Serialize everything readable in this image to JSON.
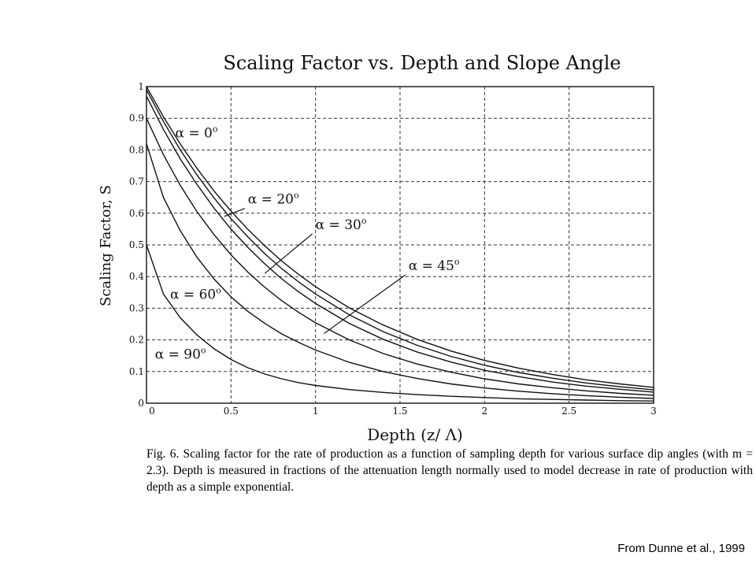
{
  "chart_data": {
    "type": "line",
    "title": "Scaling Factor vs. Depth and Slope Angle",
    "xlabel": "Depth  (z/ Λ)",
    "ylabel": "Scaling Factor, S",
    "xlim": [
      0,
      3
    ],
    "ylim": [
      0,
      1
    ],
    "xticks": [
      0,
      0.5,
      1,
      1.5,
      2,
      2.5,
      3
    ],
    "xtick_labels": [
      "0",
      "0.5",
      "1",
      "1.5",
      "2",
      "2.5",
      "3"
    ],
    "yticks": [
      0,
      0.1,
      0.2,
      0.3,
      0.4,
      0.5,
      0.6,
      0.7,
      0.8,
      0.9,
      1
    ],
    "ytick_labels": [
      "0",
      "0.1",
      "0.2",
      "0.3",
      "0.4",
      "0.5",
      "0.6",
      "0.7",
      "0.8",
      "0.9",
      "1"
    ],
    "grid": true,
    "x": [
      0,
      0.1,
      0.2,
      0.3,
      0.4,
      0.5,
      0.6,
      0.7,
      0.8,
      0.9,
      1.0,
      1.2,
      1.4,
      1.6,
      1.8,
      2.0,
      2.2,
      2.4,
      2.6,
      2.8,
      3.0
    ],
    "series": [
      {
        "name": "α = 0°",
        "values": [
          1.0,
          0.905,
          0.819,
          0.741,
          0.67,
          0.607,
          0.549,
          0.497,
          0.449,
          0.407,
          0.368,
          0.301,
          0.247,
          0.202,
          0.165,
          0.135,
          0.111,
          0.091,
          0.074,
          0.061,
          0.05
        ]
      },
      {
        "name": "α = 20°",
        "values": [
          0.99,
          0.89,
          0.8,
          0.72,
          0.648,
          0.583,
          0.525,
          0.472,
          0.425,
          0.383,
          0.345,
          0.279,
          0.226,
          0.183,
          0.148,
          0.12,
          0.097,
          0.079,
          0.064,
          0.052,
          0.042
        ]
      },
      {
        "name": "α = 30°",
        "values": [
          0.97,
          0.865,
          0.772,
          0.69,
          0.616,
          0.55,
          0.492,
          0.44,
          0.393,
          0.352,
          0.315,
          0.252,
          0.202,
          0.162,
          0.13,
          0.104,
          0.084,
          0.067,
          0.054,
          0.044,
          0.035
        ]
      },
      {
        "name": "α = 45°",
        "values": [
          0.9,
          0.785,
          0.688,
          0.604,
          0.532,
          0.469,
          0.414,
          0.366,
          0.324,
          0.287,
          0.254,
          0.2,
          0.157,
          0.124,
          0.098,
          0.077,
          0.061,
          0.049,
          0.039,
          0.031,
          0.025
        ]
      },
      {
        "name": "α = 60°",
        "values": [
          0.82,
          0.65,
          0.545,
          0.46,
          0.392,
          0.336,
          0.29,
          0.252,
          0.219,
          0.192,
          0.168,
          0.129,
          0.1,
          0.078,
          0.061,
          0.048,
          0.038,
          0.03,
          0.024,
          0.019,
          0.015
        ]
      },
      {
        "name": "α = 90°",
        "values": [
          0.5,
          0.345,
          0.27,
          0.215,
          0.172,
          0.138,
          0.112,
          0.092,
          0.077,
          0.065,
          0.056,
          0.043,
          0.034,
          0.027,
          0.022,
          0.018,
          0.014,
          0.012,
          0.01,
          0.008,
          0.007
        ]
      }
    ],
    "annotations": [
      {
        "series": 0,
        "label": "α = 0",
        "sup": "o",
        "tx": 0.17,
        "ty": 0.84,
        "ax": 0.17,
        "ay": 0.84
      },
      {
        "series": 1,
        "label": "α = 20",
        "sup": "o",
        "tx": 0.6,
        "ty": 0.63,
        "ax": 0.46,
        "ay": 0.59
      },
      {
        "series": 2,
        "label": "α = 30",
        "sup": "o",
        "tx": 1.0,
        "ty": 0.55,
        "ax": 0.7,
        "ay": 0.41
      },
      {
        "series": 3,
        "label": "α = 45",
        "sup": "o",
        "tx": 1.55,
        "ty": 0.42,
        "ax": 1.05,
        "ay": 0.22
      },
      {
        "series": 4,
        "label": "α = 60",
        "sup": "o",
        "tx": 0.14,
        "ty": 0.33,
        "ax": 0.14,
        "ay": 0.33
      },
      {
        "series": 5,
        "label": "α = 90",
        "sup": "o",
        "tx": 0.05,
        "ty": 0.14,
        "ax": 0.05,
        "ay": 0.14
      }
    ]
  },
  "caption": {
    "text": "Fig. 6. Scaling factor for the rate of production as a function of sampling depth for various surface dip angles (with m = 2.3). Depth is measured in fractions of the attenuation length normally used to model decrease in rate of production with depth as a simple exponential."
  },
  "credit": "From Dunne et al., 1999"
}
